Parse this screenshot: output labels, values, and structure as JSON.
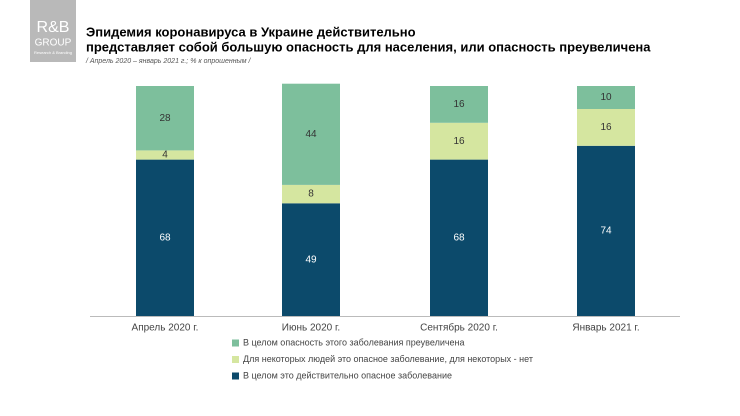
{
  "logo": {
    "line1": "R&B",
    "line2": "GROUP",
    "line3": "Research & Branding"
  },
  "chart_data": {
    "type": "stacked-bar",
    "title": [
      "Эпидемия коронавируса в Украине действительно",
      "представляет собой большую опасность для населения, или опасность преувеличена"
    ],
    "subtitle": "/ Апрель 2020 – январь 2021 г.; % к опрошенным /",
    "categories": [
      "Апрель 2020 г.",
      "Июнь 2020 г.",
      "Сентябрь 2020 г.",
      "Январь 2021 г."
    ],
    "series": [
      {
        "name": "В целом опасность этого заболевания преувеличена",
        "color": "#7dbf9c",
        "values": [
          28,
          44,
          16,
          10
        ]
      },
      {
        "name": "Для некоторых людей это опасное заболевание, для некоторых - нет",
        "color": "#d5e6a0",
        "values": [
          4,
          8,
          16,
          16
        ]
      },
      {
        "name": "В целом это действительно опасное заболевание",
        "color": "#0c4a6b",
        "values": [
          68,
          49,
          68,
          74
        ]
      }
    ],
    "ylim": [
      0,
      100
    ]
  }
}
